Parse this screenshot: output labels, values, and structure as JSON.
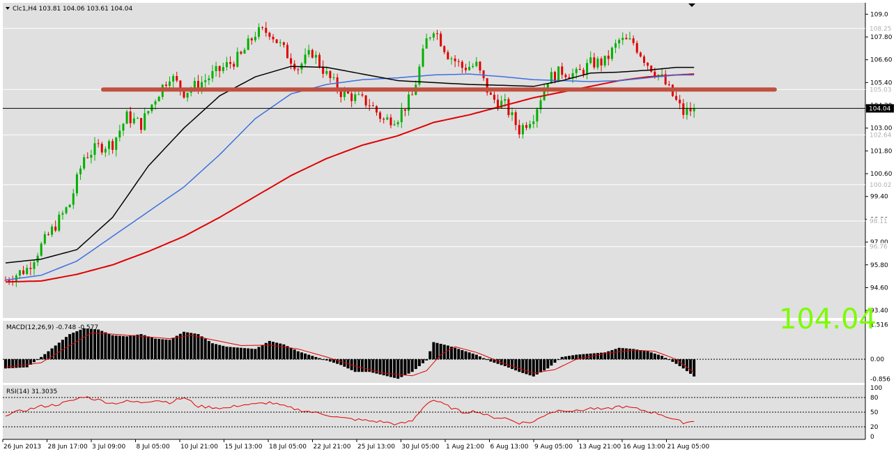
{
  "chart_data": [
    {
      "type": "candlestick",
      "symbol_header": "Clc1,H4  103.81 104.06 103.61 104.04",
      "big_price_label": "104.04",
      "current_price_tag": "104.04",
      "ylim": [
        93.0,
        109.6
      ],
      "price_ticks": [
        "109.0",
        "107.80",
        "106.60",
        "105.40",
        "104.20",
        "103.00",
        "101.80",
        "100.60",
        "99.40",
        "98.20",
        "97.00",
        "95.80",
        "94.60",
        "93.40"
      ],
      "level_tags": [
        "108.25",
        "105.03",
        "102.64",
        "100.02",
        "98.11",
        "96.76"
      ],
      "level_values": [
        108.25,
        105.03,
        102.64,
        100.02,
        98.11,
        96.76
      ],
      "x_labels": [
        "26 Jun 2013",
        "28 Jun 17:00",
        "3 Jul 09:00",
        "8 Jul 05:00",
        "10 Jul 21:00",
        "15 Jul 13:00",
        "18 Jul 05:00",
        "22 Jul 21:00",
        "25 Jul 13:00",
        "30 Jul 05:00",
        "1 Aug 21:00",
        "6 Aug 13:00",
        "9 Aug 05:00",
        "13 Aug 21:00",
        "16 Aug 13:00",
        "21 Aug 05:00"
      ],
      "support_resistance": 105.03,
      "close_anchors": [
        [
          0,
          95.0
        ],
        [
          6,
          95.6
        ],
        [
          10,
          96.8
        ],
        [
          14,
          97.9
        ],
        [
          18,
          99.0
        ],
        [
          22,
          101.5
        ],
        [
          26,
          102.0
        ],
        [
          30,
          102.2
        ],
        [
          34,
          103.6
        ],
        [
          38,
          103.2
        ],
        [
          42,
          104.6
        ],
        [
          46,
          105.8
        ],
        [
          50,
          104.9
        ],
        [
          54,
          105.3
        ],
        [
          58,
          105.8
        ],
        [
          62,
          106.3
        ],
        [
          66,
          106.8
        ],
        [
          70,
          108.0
        ],
        [
          74,
          108.1
        ],
        [
          78,
          107.1
        ],
        [
          82,
          106.2
        ],
        [
          86,
          107.0
        ],
        [
          90,
          105.8
        ],
        [
          94,
          104.9
        ],
        [
          98,
          104.6
        ],
        [
          102,
          104.3
        ],
        [
          106,
          103.4
        ],
        [
          110,
          103.6
        ],
        [
          114,
          104.7
        ],
        [
          118,
          107.6
        ],
        [
          120,
          108.3
        ],
        [
          124,
          106.9
        ],
        [
          128,
          106.2
        ],
        [
          132,
          106.3
        ],
        [
          136,
          104.6
        ],
        [
          140,
          104.2
        ],
        [
          144,
          102.9
        ],
        [
          148,
          103.7
        ],
        [
          152,
          105.6
        ],
        [
          156,
          106.0
        ],
        [
          160,
          105.8
        ],
        [
          164,
          106.4
        ],
        [
          168,
          106.5
        ],
        [
          172,
          107.6
        ],
        [
          176,
          107.5
        ],
        [
          180,
          106.4
        ],
        [
          184,
          105.6
        ],
        [
          188,
          104.4
        ],
        [
          190,
          103.8
        ],
        [
          193,
          104.04
        ]
      ],
      "ma_black_anchors": [
        [
          0,
          95.9
        ],
        [
          10,
          96.1
        ],
        [
          20,
          96.6
        ],
        [
          30,
          98.3
        ],
        [
          40,
          101.0
        ],
        [
          50,
          103.0
        ],
        [
          60,
          104.7
        ],
        [
          70,
          105.7
        ],
        [
          80,
          106.25
        ],
        [
          90,
          106.2
        ],
        [
          100,
          105.85
        ],
        [
          110,
          105.5
        ],
        [
          120,
          105.4
        ],
        [
          130,
          105.3
        ],
        [
          140,
          105.25
        ],
        [
          148,
          105.2
        ],
        [
          156,
          105.5
        ],
        [
          164,
          105.9
        ],
        [
          172,
          105.95
        ],
        [
          180,
          106.05
        ],
        [
          188,
          106.2
        ],
        [
          193,
          106.2
        ]
      ],
      "ma_blue_anchors": [
        [
          0,
          95.0
        ],
        [
          10,
          95.25
        ],
        [
          20,
          96.0
        ],
        [
          30,
          97.3
        ],
        [
          40,
          98.6
        ],
        [
          50,
          99.9
        ],
        [
          60,
          101.6
        ],
        [
          70,
          103.5
        ],
        [
          80,
          104.8
        ],
        [
          90,
          105.3
        ],
        [
          100,
          105.55
        ],
        [
          110,
          105.65
        ],
        [
          120,
          105.8
        ],
        [
          130,
          105.85
        ],
        [
          140,
          105.7
        ],
        [
          148,
          105.55
        ],
        [
          156,
          105.5
        ],
        [
          164,
          105.45
        ],
        [
          172,
          105.5
        ],
        [
          180,
          105.65
        ],
        [
          188,
          105.8
        ],
        [
          193,
          105.8
        ]
      ],
      "ma_red_anchors": [
        [
          0,
          94.9
        ],
        [
          10,
          94.95
        ],
        [
          20,
          95.3
        ],
        [
          30,
          95.8
        ],
        [
          40,
          96.5
        ],
        [
          50,
          97.3
        ],
        [
          60,
          98.3
        ],
        [
          70,
          99.4
        ],
        [
          80,
          100.5
        ],
        [
          90,
          101.4
        ],
        [
          100,
          102.1
        ],
        [
          110,
          102.6
        ],
        [
          120,
          103.3
        ],
        [
          130,
          103.7
        ],
        [
          140,
          104.2
        ],
        [
          148,
          104.6
        ],
        [
          156,
          104.9
        ],
        [
          164,
          105.2
        ],
        [
          172,
          105.5
        ],
        [
          180,
          105.7
        ],
        [
          188,
          105.8
        ],
        [
          193,
          105.85
        ]
      ]
    },
    {
      "type": "bar",
      "indicator": "MACD",
      "header": "MACD(12,26,9) -0.748 -0.577",
      "ticks": [
        "1.516",
        "0.00",
        "-0.856"
      ],
      "ylim": [
        -1.0,
        1.65
      ],
      "hist_anchors": [
        [
          0,
          -0.4
        ],
        [
          6,
          -0.35
        ],
        [
          10,
          0.1
        ],
        [
          14,
          0.6
        ],
        [
          18,
          1.1
        ],
        [
          22,
          1.35
        ],
        [
          26,
          1.3
        ],
        [
          30,
          1.05
        ],
        [
          34,
          1.0
        ],
        [
          38,
          1.1
        ],
        [
          42,
          0.9
        ],
        [
          46,
          0.85
        ],
        [
          50,
          1.2
        ],
        [
          54,
          1.1
        ],
        [
          58,
          0.7
        ],
        [
          62,
          0.55
        ],
        [
          66,
          0.5
        ],
        [
          70,
          0.45
        ],
        [
          74,
          0.8
        ],
        [
          78,
          0.65
        ],
        [
          82,
          0.35
        ],
        [
          86,
          0.15
        ],
        [
          90,
          -0.05
        ],
        [
          94,
          -0.25
        ],
        [
          98,
          -0.55
        ],
        [
          102,
          -0.55
        ],
        [
          106,
          -0.7
        ],
        [
          110,
          -0.85
        ],
        [
          114,
          -0.55
        ],
        [
          118,
          -0.05
        ],
        [
          120,
          0.75
        ],
        [
          124,
          0.6
        ],
        [
          128,
          0.4
        ],
        [
          132,
          0.2
        ],
        [
          136,
          -0.1
        ],
        [
          140,
          -0.3
        ],
        [
          144,
          -0.55
        ],
        [
          148,
          -0.75
        ],
        [
          152,
          -0.4
        ],
        [
          156,
          0.1
        ],
        [
          160,
          0.2
        ],
        [
          164,
          0.25
        ],
        [
          168,
          0.3
        ],
        [
          172,
          0.5
        ],
        [
          176,
          0.45
        ],
        [
          180,
          0.35
        ],
        [
          184,
          0.15
        ],
        [
          188,
          -0.2
        ],
        [
          190,
          -0.4
        ],
        [
          193,
          -0.75
        ]
      ],
      "signal_anchors": [
        [
          0,
          -0.35
        ],
        [
          10,
          -0.15
        ],
        [
          18,
          0.6
        ],
        [
          24,
          1.15
        ],
        [
          30,
          1.1
        ],
        [
          38,
          1.0
        ],
        [
          46,
          0.9
        ],
        [
          52,
          1.05
        ],
        [
          58,
          0.85
        ],
        [
          66,
          0.6
        ],
        [
          74,
          0.62
        ],
        [
          82,
          0.45
        ],
        [
          90,
          0.1
        ],
        [
          98,
          -0.3
        ],
        [
          106,
          -0.6
        ],
        [
          114,
          -0.72
        ],
        [
          118,
          -0.5
        ],
        [
          122,
          0.2
        ],
        [
          126,
          0.55
        ],
        [
          132,
          0.3
        ],
        [
          140,
          -0.2
        ],
        [
          148,
          -0.6
        ],
        [
          154,
          -0.45
        ],
        [
          160,
          0.0
        ],
        [
          168,
          0.25
        ],
        [
          176,
          0.4
        ],
        [
          182,
          0.35
        ],
        [
          188,
          0.0
        ],
        [
          193,
          -0.58
        ]
      ]
    },
    {
      "type": "line",
      "indicator": "RSI",
      "header": "RSI(14) 31.3035",
      "ticks": [
        "100",
        "80",
        "50",
        "20",
        "0"
      ],
      "levels": [
        80,
        50,
        20
      ],
      "ylim": [
        0,
        100
      ],
      "rsi_anchors": [
        [
          0,
          45
        ],
        [
          6,
          55
        ],
        [
          10,
          62
        ],
        [
          14,
          65
        ],
        [
          18,
          72
        ],
        [
          22,
          82
        ],
        [
          26,
          75
        ],
        [
          30,
          68
        ],
        [
          34,
          72
        ],
        [
          38,
          70
        ],
        [
          42,
          75
        ],
        [
          46,
          70
        ],
        [
          50,
          80
        ],
        [
          54,
          62
        ],
        [
          58,
          60
        ],
        [
          62,
          58
        ],
        [
          66,
          65
        ],
        [
          70,
          66
        ],
        [
          74,
          70
        ],
        [
          78,
          62
        ],
        [
          82,
          55
        ],
        [
          86,
          50
        ],
        [
          90,
          45
        ],
        [
          94,
          38
        ],
        [
          98,
          35
        ],
        [
          102,
          32
        ],
        [
          106,
          30
        ],
        [
          110,
          25
        ],
        [
          114,
          32
        ],
        [
          118,
          68
        ],
        [
          120,
          75
        ],
        [
          124,
          62
        ],
        [
          128,
          50
        ],
        [
          132,
          52
        ],
        [
          136,
          40
        ],
        [
          140,
          38
        ],
        [
          144,
          28
        ],
        [
          148,
          30
        ],
        [
          152,
          48
        ],
        [
          156,
          55
        ],
        [
          160,
          52
        ],
        [
          164,
          58
        ],
        [
          168,
          55
        ],
        [
          172,
          62
        ],
        [
          176,
          58
        ],
        [
          180,
          52
        ],
        [
          184,
          45
        ],
        [
          188,
          33
        ],
        [
          190,
          29
        ],
        [
          193,
          31
        ]
      ]
    }
  ],
  "theme": {
    "background": "#ffffff",
    "plot_bg": "#e0e0e0",
    "bull": "#00b000",
    "bear": "#e00000",
    "ma_black": "#000000",
    "ma_blue": "#3c6fe0",
    "ma_red": "#e00000",
    "sr_line": "#c05040",
    "big_label": "#7cfc00"
  }
}
